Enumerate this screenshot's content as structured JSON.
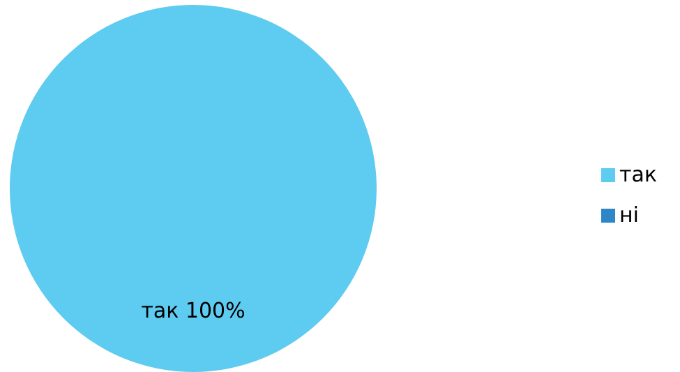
{
  "chart_data": {
    "type": "pie",
    "categories": [
      "так",
      "ні"
    ],
    "values": [
      100,
      0
    ],
    "slice_labels": [
      "так 100%"
    ],
    "colors": [
      "#5ECBF0",
      "#2E86C8"
    ],
    "legend": {
      "placement": "right",
      "entries": [
        "так",
        "ні"
      ]
    }
  }
}
